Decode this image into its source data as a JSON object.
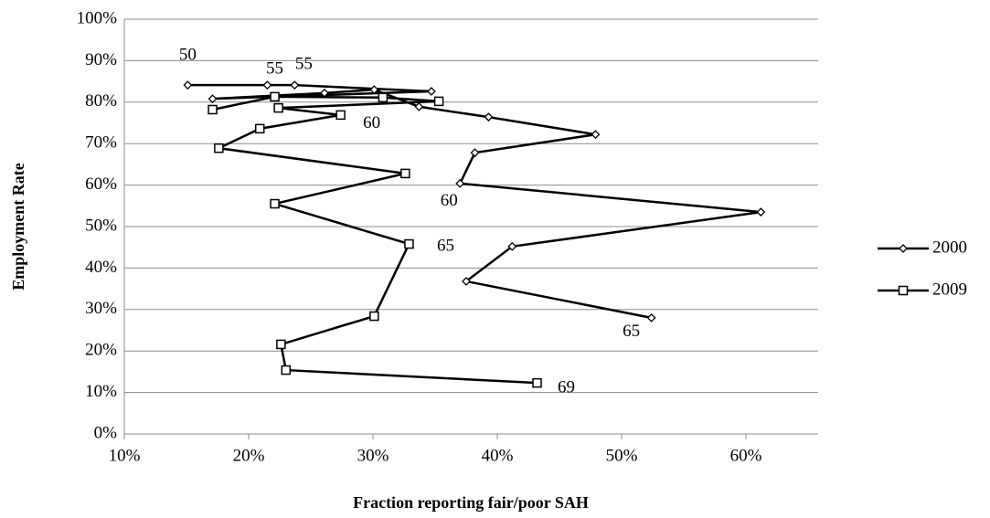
{
  "chart_data": {
    "type": "line",
    "y_label": "Employment Rate",
    "x_label": "Fraction reporting fair/poor SAH",
    "xlim": [
      10,
      65
    ],
    "ylim": [
      0,
      100
    ],
    "xticks": [
      {
        "value": 10,
        "label": "10%"
      },
      {
        "value": 20,
        "label": "20%"
      },
      {
        "value": 30,
        "label": "30%"
      },
      {
        "value": 40,
        "label": "40%"
      },
      {
        "value": 50,
        "label": "50%"
      },
      {
        "value": 60,
        "label": "60%"
      }
    ],
    "yticks": [
      {
        "value": 0,
        "label": "0%"
      },
      {
        "value": 10,
        "label": "10%"
      },
      {
        "value": 20,
        "label": "20%"
      },
      {
        "value": 30,
        "label": "30%"
      },
      {
        "value": 40,
        "label": "40%"
      },
      {
        "value": 50,
        "label": "50%"
      },
      {
        "value": 60,
        "label": "60%"
      },
      {
        "value": 70,
        "label": "70%"
      },
      {
        "value": 80,
        "label": "80%"
      },
      {
        "value": 90,
        "label": "90%"
      },
      {
        "value": 100,
        "label": "100%"
      }
    ],
    "grid": true,
    "legend": "right",
    "series": [
      {
        "name": "2000",
        "color": "#000000",
        "marker": "diamond",
        "x": [
          15.1,
          21.5,
          23.7,
          34.7,
          17.1,
          26.1,
          30.1,
          33.7,
          39.3,
          47.9,
          38.2,
          37.0,
          61.2,
          41.2,
          37.5,
          52.4
        ],
        "values": [
          84.1,
          84.1,
          84.1,
          82.6,
          80.8,
          82.2,
          83.0,
          78.9,
          76.4,
          72.2,
          67.8,
          60.4,
          53.5,
          45.2,
          36.8,
          28.0
        ]
      },
      {
        "name": "2009",
        "color": "#000000",
        "marker": "square",
        "x": [
          17.1,
          22.1,
          30.8,
          35.3,
          22.4,
          27.4,
          20.9,
          17.6,
          32.6,
          22.1,
          32.9,
          30.1,
          22.6,
          23.0,
          43.2
        ],
        "values": [
          78.2,
          81.3,
          81.1,
          80.2,
          78.6,
          76.9,
          73.6,
          68.9,
          62.8,
          55.5,
          45.8,
          28.4,
          21.6,
          15.4,
          12.3
        ]
      }
    ],
    "annotations": [
      {
        "text": "50",
        "series": 0,
        "point": 0
      },
      {
        "text": "55",
        "series": 1,
        "point": 1
      },
      {
        "text": "55",
        "series": 0,
        "point": 2
      },
      {
        "text": "60",
        "series": 1,
        "point": 5
      },
      {
        "text": "60",
        "series": 0,
        "point": 11
      },
      {
        "text": "65",
        "series": 1,
        "point": 10
      },
      {
        "text": "65",
        "series": 0,
        "point": 15
      },
      {
        "text": "69",
        "series": 1,
        "point": 14
      }
    ]
  }
}
